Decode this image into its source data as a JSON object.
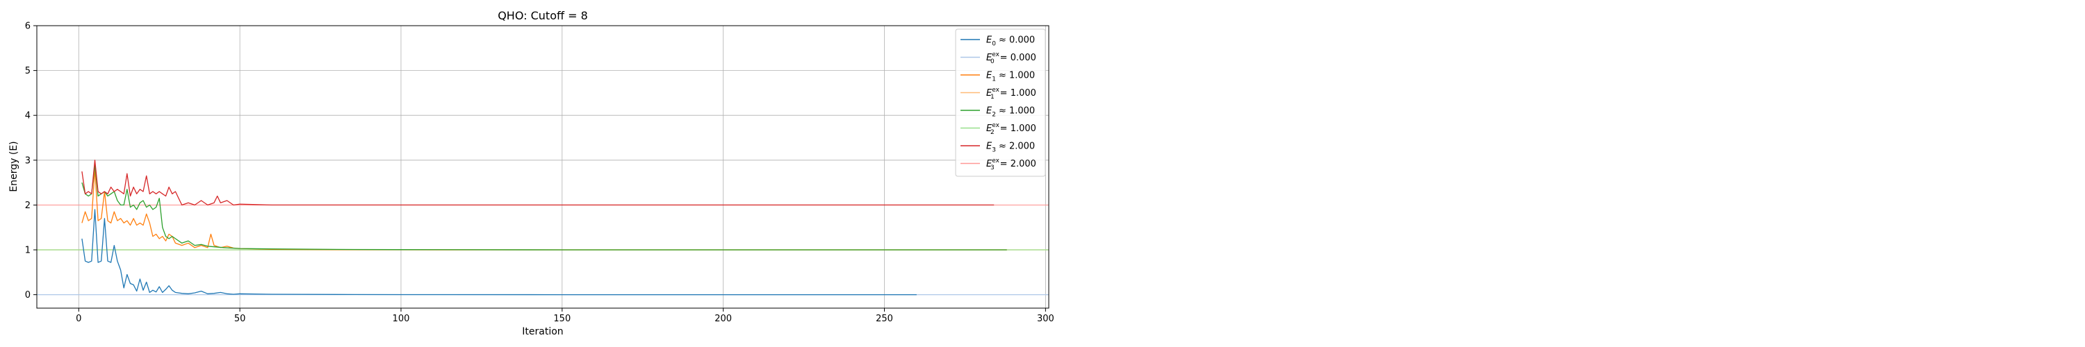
{
  "chart_data": {
    "type": "line",
    "title": "QHO: Cutoff = 8",
    "xlabel": "Iteration",
    "ylabel": "Energy (E)",
    "xlim": [
      -13,
      301
    ],
    "ylim": [
      -0.3,
      6.0
    ],
    "xticks": [
      0,
      50,
      100,
      150,
      200,
      250,
      300
    ],
    "yticks": [
      0,
      1,
      2,
      3,
      4,
      5,
      6
    ],
    "grid": true,
    "legend_position": "top-right",
    "series": [
      {
        "name": "E_0 ≈ 0.000",
        "label_main": "E",
        "label_sub": "0",
        "label_sup": "",
        "label_value": "≈ 0.000",
        "color": "#1f77b4",
        "kind": "estimate",
        "x": [
          1,
          2,
          3,
          4,
          5,
          6,
          7,
          8,
          9,
          10,
          11,
          12,
          13,
          14,
          15,
          16,
          17,
          18,
          19,
          20,
          21,
          22,
          23,
          24,
          25,
          26,
          27,
          28,
          29,
          30,
          32,
          34,
          36,
          38,
          40,
          42,
          44,
          46,
          48,
          50,
          60,
          80,
          100,
          150,
          200,
          260
        ],
        "y": [
          1.25,
          0.75,
          0.72,
          0.75,
          1.9,
          0.72,
          0.75,
          1.7,
          0.75,
          0.72,
          1.1,
          0.75,
          0.55,
          0.15,
          0.45,
          0.25,
          0.22,
          0.08,
          0.35,
          0.1,
          0.28,
          0.05,
          0.1,
          0.06,
          0.18,
          0.05,
          0.12,
          0.2,
          0.1,
          0.05,
          0.03,
          0.02,
          0.04,
          0.08,
          0.02,
          0.03,
          0.05,
          0.02,
          0.01,
          0.02,
          0.01,
          0.005,
          0.002,
          0.001,
          0.001,
          0.001
        ]
      },
      {
        "name": "E_0^ex = 0.000",
        "label_main": "E",
        "label_sub": "0",
        "label_sup": "ex",
        "label_value": "= 0.000",
        "color": "#aec7e8",
        "kind": "exact",
        "constant": 0.0
      },
      {
        "name": "E_1 ≈ 1.000",
        "label_main": "E",
        "label_sub": "1",
        "label_sup": "",
        "label_value": "≈ 1.000",
        "color": "#ff7f0e",
        "kind": "estimate",
        "x": [
          1,
          2,
          3,
          4,
          5,
          6,
          7,
          8,
          9,
          10,
          11,
          12,
          13,
          14,
          15,
          16,
          17,
          18,
          19,
          20,
          21,
          22,
          23,
          24,
          25,
          26,
          27,
          28,
          29,
          30,
          32,
          34,
          36,
          38,
          40,
          41,
          42,
          44,
          46,
          48,
          50,
          55,
          60,
          80,
          100,
          150,
          200,
          250,
          288
        ],
        "y": [
          1.6,
          1.85,
          1.65,
          1.7,
          2.8,
          1.65,
          1.7,
          2.3,
          1.65,
          1.6,
          1.85,
          1.65,
          1.7,
          1.6,
          1.65,
          1.55,
          1.7,
          1.55,
          1.6,
          1.55,
          1.8,
          1.6,
          1.3,
          1.35,
          1.25,
          1.3,
          1.2,
          1.35,
          1.3,
          1.15,
          1.1,
          1.15,
          1.05,
          1.1,
          1.05,
          1.35,
          1.1,
          1.05,
          1.08,
          1.04,
          1.03,
          1.02,
          1.01,
          1.005,
          1.002,
          1.001,
          1.0,
          1.0,
          1.0
        ]
      },
      {
        "name": "E_1^ex = 1.000",
        "label_main": "E",
        "label_sub": "1",
        "label_sup": "ex",
        "label_value": "= 1.000",
        "color": "#ffbb78",
        "kind": "exact",
        "constant": 1.0
      },
      {
        "name": "E_2 ≈ 1.000",
        "label_main": "E",
        "label_sub": "2",
        "label_sup": "",
        "label_value": "≈ 1.000",
        "color": "#2ca02c",
        "kind": "estimate",
        "x": [
          1,
          2,
          3,
          4,
          5,
          6,
          7,
          8,
          9,
          10,
          11,
          12,
          13,
          14,
          15,
          16,
          17,
          18,
          19,
          20,
          21,
          22,
          23,
          24,
          25,
          26,
          27,
          28,
          29,
          30,
          32,
          34,
          36,
          38,
          40,
          45,
          50,
          60,
          80,
          100,
          150,
          200,
          250,
          288
        ],
        "y": [
          2.5,
          2.25,
          2.2,
          2.25,
          2.9,
          2.2,
          2.25,
          2.3,
          2.2,
          2.25,
          2.3,
          2.1,
          2.0,
          2.0,
          2.35,
          1.95,
          2.0,
          1.9,
          2.05,
          2.1,
          1.95,
          2.0,
          1.9,
          1.95,
          2.15,
          1.5,
          1.3,
          1.25,
          1.3,
          1.25,
          1.15,
          1.2,
          1.1,
          1.12,
          1.08,
          1.05,
          1.03,
          1.02,
          1.01,
          1.005,
          1.0,
          1.0,
          1.0,
          1.0
        ]
      },
      {
        "name": "E_2^ex = 1.000",
        "label_main": "E",
        "label_sub": "2",
        "label_sup": "ex",
        "label_value": "= 1.000",
        "color": "#98df8a",
        "kind": "exact",
        "constant": 1.0
      },
      {
        "name": "E_3 ≈ 2.000",
        "label_main": "E",
        "label_sub": "3",
        "label_sup": "",
        "label_value": "≈ 2.000",
        "color": "#d62728",
        "kind": "estimate",
        "x": [
          1,
          2,
          3,
          4,
          5,
          6,
          7,
          8,
          9,
          10,
          11,
          12,
          13,
          14,
          15,
          16,
          17,
          18,
          19,
          20,
          21,
          22,
          23,
          24,
          25,
          26,
          27,
          28,
          29,
          30,
          32,
          34,
          36,
          38,
          40,
          42,
          43,
          44,
          46,
          48,
          50,
          55,
          60,
          80,
          100,
          150,
          200,
          250,
          284
        ],
        "y": [
          2.75,
          2.25,
          2.3,
          2.25,
          3.0,
          2.3,
          2.25,
          2.3,
          2.25,
          2.4,
          2.3,
          2.35,
          2.3,
          2.25,
          2.7,
          2.2,
          2.4,
          2.25,
          2.35,
          2.3,
          2.65,
          2.25,
          2.3,
          2.25,
          2.3,
          2.25,
          2.2,
          2.4,
          2.25,
          2.3,
          2.0,
          2.05,
          2.0,
          2.1,
          2.0,
          2.05,
          2.2,
          2.05,
          2.1,
          2.0,
          2.02,
          2.01,
          2.0,
          2.0,
          2.0,
          2.0,
          2.0,
          2.0,
          2.0
        ]
      },
      {
        "name": "E_3^ex = 2.000",
        "label_main": "E",
        "label_sub": "3",
        "label_sup": "ex",
        "label_value": "= 2.000",
        "color": "#ff9896",
        "kind": "exact",
        "constant": 2.0
      }
    ]
  }
}
